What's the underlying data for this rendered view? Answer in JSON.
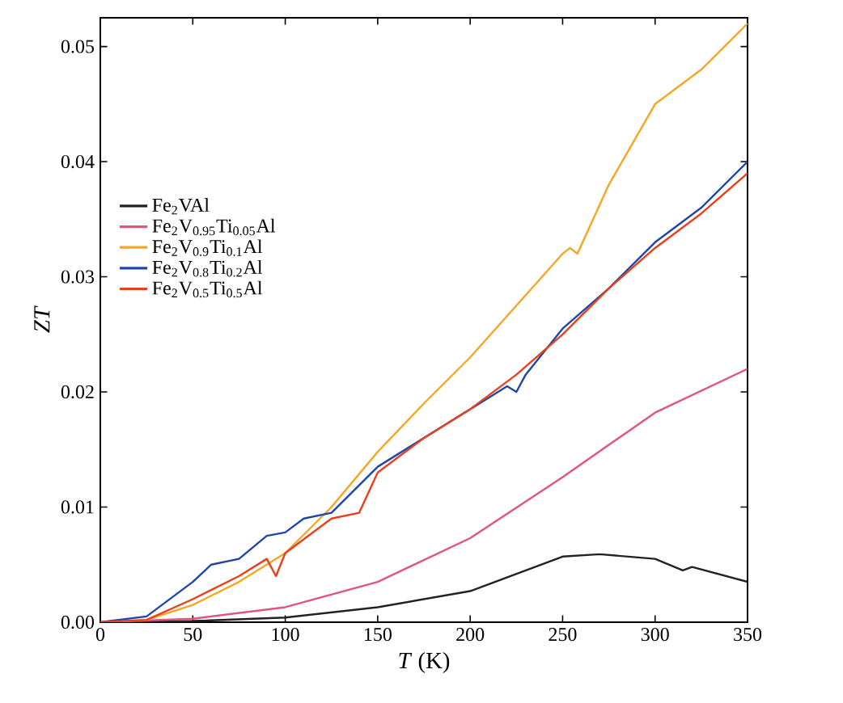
{
  "chart_data": {
    "type": "line",
    "xlabel": "*T* (K)",
    "ylabel": "ZT",
    "xlim": [
      0,
      350
    ],
    "ylim": [
      0,
      0.0525
    ],
    "xticks": [
      0,
      50,
      100,
      150,
      200,
      250,
      300,
      350
    ],
    "yticks": [
      {
        "value": 0,
        "label": "0.00"
      },
      {
        "value": 0.01,
        "label": "0.01"
      },
      {
        "value": 0.02,
        "label": "0.02"
      },
      {
        "value": 0.03,
        "label": "0.03"
      },
      {
        "value": 0.04,
        "label": "0.04"
      },
      {
        "value": 0.05,
        "label": "0.05"
      }
    ],
    "legend": "left",
    "grid": false,
    "marker": "none",
    "line_style": "solid",
    "series": [
      {
        "name": "Fe$_{2}$VAl",
        "color": "#222222",
        "x": [
          0,
          50,
          100,
          150,
          200,
          250,
          270,
          300,
          315,
          320,
          350
        ],
        "values": [
          0,
          0.0001,
          0.0004,
          0.0013,
          0.0027,
          0.0057,
          0.0059,
          0.0055,
          0.0045,
          0.0048,
          0.0035
        ]
      },
      {
        "name": "Fe$_{2}$V$_{0.95}$Ti$_{0.05}$Al",
        "color": "#e0557a",
        "x": [
          0,
          50,
          100,
          150,
          200,
          250,
          300,
          350
        ],
        "values": [
          0,
          0.0003,
          0.0013,
          0.0035,
          0.0073,
          0.0126,
          0.0182,
          0.022
        ]
      },
      {
        "name": "Fe$_{2}$V$_{0.9}$Ti$_{0.1}$Al",
        "color": "#f5a623",
        "x": [
          0,
          25,
          50,
          75,
          100,
          125,
          150,
          175,
          200,
          225,
          250,
          254,
          258,
          275,
          300,
          325,
          350
        ],
        "values": [
          0,
          0.0002,
          0.0015,
          0.0035,
          0.006,
          0.01,
          0.0148,
          0.019,
          0.023,
          0.0275,
          0.032,
          0.0325,
          0.032,
          0.038,
          0.045,
          0.048,
          0.052
        ]
      },
      {
        "name": "Fe$_{2}$V$_{0.8}$Ti$_{0.2}$Al",
        "color": "#2046a8",
        "x": [
          0,
          25,
          50,
          60,
          75,
          90,
          100,
          110,
          125,
          150,
          175,
          200,
          220,
          225,
          230,
          250,
          275,
          300,
          325,
          350
        ],
        "values": [
          0,
          0.0005,
          0.0035,
          0.005,
          0.0055,
          0.0075,
          0.0078,
          0.009,
          0.0095,
          0.0135,
          0.016,
          0.0185,
          0.0205,
          0.02,
          0.0215,
          0.0255,
          0.029,
          0.033,
          0.036,
          0.04
        ]
      },
      {
        "name": "Fe$_{2}$V$_{0.5}$Ti$_{0.5}$Al",
        "color": "#e8401c",
        "x": [
          0,
          25,
          50,
          75,
          90,
          95,
          100,
          125,
          140,
          150,
          175,
          200,
          225,
          250,
          275,
          300,
          325,
          350
        ],
        "values": [
          0,
          0.0002,
          0.002,
          0.004,
          0.0055,
          0.004,
          0.006,
          0.009,
          0.0095,
          0.013,
          0.016,
          0.0185,
          0.0215,
          0.025,
          0.029,
          0.0325,
          0.0355,
          0.039
        ]
      }
    ]
  }
}
